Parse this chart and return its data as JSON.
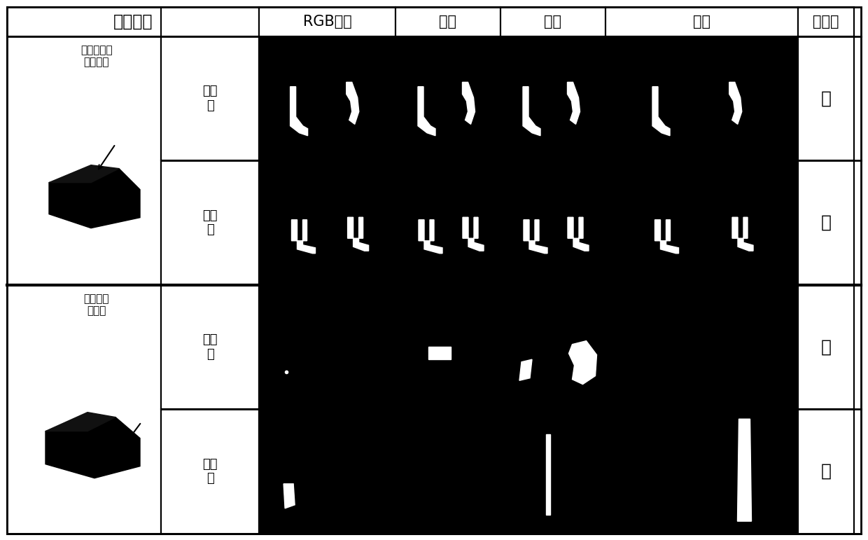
{
  "col_headers": [
    "外观检查",
    "",
    "RGB照明",
    "红色",
    "绿色",
    "蓝色",
    "可见性"
  ],
  "group1_label": "覆盖面的线\n圈可见性",
  "group2_label": "侧面电极\n可见性",
  "row_labels": [
    "比较\n例",
    "实施\n例"
  ],
  "visibility": [
    "有",
    "无"
  ],
  "bg_color": "#ffffff",
  "cell_bg": "#000000",
  "text_color": "#000000"
}
